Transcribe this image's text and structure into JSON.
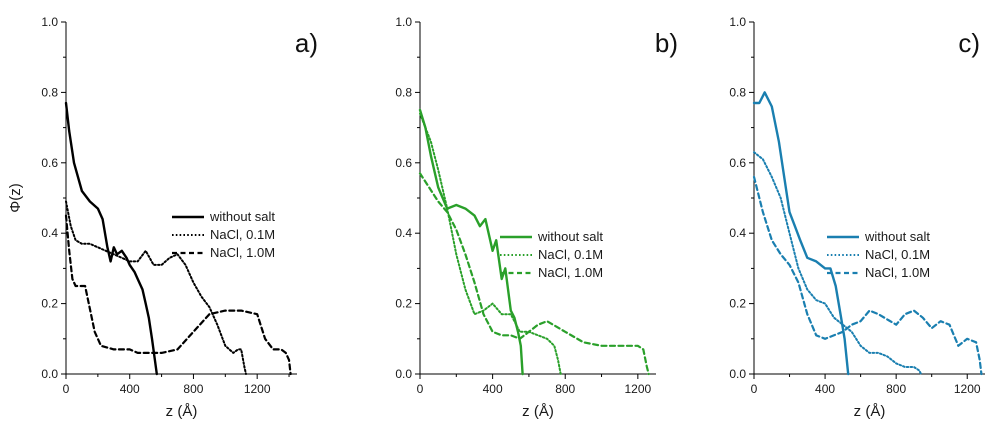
{
  "chart_data": [
    {
      "type": "line",
      "panel_label": "a)",
      "color": "#000000",
      "xlabel": "z (Å)",
      "ylabel": "Φ(z)",
      "xlim": [
        0,
        1450
      ],
      "ylim": [
        0,
        1.0
      ],
      "xticks": [
        0,
        400,
        800,
        1200
      ],
      "yticks": [
        0.0,
        0.2,
        0.4,
        0.6,
        0.8,
        1.0
      ],
      "legend_position": "center-right",
      "series": [
        {
          "name": "without salt",
          "style": "solid",
          "points": [
            [
              0,
              0.77
            ],
            [
              20,
              0.69
            ],
            [
              50,
              0.6
            ],
            [
              100,
              0.52
            ],
            [
              150,
              0.49
            ],
            [
              200,
              0.47
            ],
            [
              230,
              0.44
            ],
            [
              260,
              0.36
            ],
            [
              280,
              0.32
            ],
            [
              300,
              0.36
            ],
            [
              320,
              0.34
            ],
            [
              350,
              0.35
            ],
            [
              380,
              0.33
            ],
            [
              400,
              0.31
            ],
            [
              430,
              0.29
            ],
            [
              450,
              0.27
            ],
            [
              480,
              0.24
            ],
            [
              500,
              0.2
            ],
            [
              520,
              0.16
            ],
            [
              540,
              0.1
            ],
            [
              555,
              0.05
            ],
            [
              570,
              0.0
            ]
          ]
        },
        {
          "name": "NaCl, 0.1M",
          "style": "dotted",
          "points": [
            [
              0,
              0.49
            ],
            [
              30,
              0.42
            ],
            [
              60,
              0.38
            ],
            [
              100,
              0.37
            ],
            [
              150,
              0.37
            ],
            [
              200,
              0.36
            ],
            [
              250,
              0.35
            ],
            [
              300,
              0.34
            ],
            [
              350,
              0.33
            ],
            [
              400,
              0.32
            ],
            [
              450,
              0.32
            ],
            [
              500,
              0.35
            ],
            [
              550,
              0.31
            ],
            [
              600,
              0.31
            ],
            [
              650,
              0.33
            ],
            [
              700,
              0.34
            ],
            [
              750,
              0.31
            ],
            [
              800,
              0.26
            ],
            [
              850,
              0.22
            ],
            [
              900,
              0.19
            ],
            [
              950,
              0.14
            ],
            [
              1000,
              0.08
            ],
            [
              1050,
              0.06
            ],
            [
              1080,
              0.07
            ],
            [
              1100,
              0.07
            ],
            [
              1120,
              0.02
            ],
            [
              1130,
              0.0
            ]
          ]
        },
        {
          "name": "NaCl, 1.0M",
          "style": "dashed",
          "points": [
            [
              0,
              0.45
            ],
            [
              20,
              0.35
            ],
            [
              40,
              0.27
            ],
            [
              60,
              0.25
            ],
            [
              120,
              0.25
            ],
            [
              180,
              0.12
            ],
            [
              220,
              0.08
            ],
            [
              300,
              0.07
            ],
            [
              350,
              0.07
            ],
            [
              400,
              0.07
            ],
            [
              450,
              0.06
            ],
            [
              500,
              0.06
            ],
            [
              600,
              0.06
            ],
            [
              700,
              0.07
            ],
            [
              800,
              0.12
            ],
            [
              900,
              0.17
            ],
            [
              1000,
              0.18
            ],
            [
              1100,
              0.18
            ],
            [
              1200,
              0.17
            ],
            [
              1250,
              0.1
            ],
            [
              1300,
              0.07
            ],
            [
              1350,
              0.07
            ],
            [
              1380,
              0.06
            ],
            [
              1400,
              0.04
            ],
            [
              1410,
              0.0
            ]
          ]
        }
      ]
    },
    {
      "type": "line",
      "panel_label": "b)",
      "color": "#2aa02a",
      "xlabel": "z (Å)",
      "ylabel": "",
      "xlim": [
        0,
        1300
      ],
      "ylim": [
        0,
        1.0
      ],
      "xticks": [
        0,
        400,
        800,
        1200
      ],
      "yticks": [
        0.0,
        0.2,
        0.4,
        0.6,
        0.8,
        1.0
      ],
      "legend_position": "center-right",
      "series": [
        {
          "name": "without salt",
          "style": "solid",
          "points": [
            [
              0,
              0.75
            ],
            [
              30,
              0.7
            ],
            [
              60,
              0.62
            ],
            [
              100,
              0.53
            ],
            [
              150,
              0.47
            ],
            [
              200,
              0.48
            ],
            [
              250,
              0.47
            ],
            [
              300,
              0.45
            ],
            [
              330,
              0.42
            ],
            [
              360,
              0.44
            ],
            [
              400,
              0.35
            ],
            [
              420,
              0.38
            ],
            [
              450,
              0.27
            ],
            [
              470,
              0.3
            ],
            [
              500,
              0.18
            ],
            [
              520,
              0.16
            ],
            [
              540,
              0.12
            ],
            [
              555,
              0.08
            ],
            [
              565,
              0.0
            ]
          ]
        },
        {
          "name": "NaCl, 0.1M",
          "style": "dotted",
          "points": [
            [
              0,
              0.74
            ],
            [
              30,
              0.7
            ],
            [
              60,
              0.66
            ],
            [
              100,
              0.58
            ],
            [
              150,
              0.47
            ],
            [
              200,
              0.34
            ],
            [
              250,
              0.24
            ],
            [
              300,
              0.17
            ],
            [
              350,
              0.18
            ],
            [
              400,
              0.2
            ],
            [
              450,
              0.17
            ],
            [
              500,
              0.17
            ],
            [
              550,
              0.12
            ],
            [
              600,
              0.12
            ],
            [
              650,
              0.11
            ],
            [
              700,
              0.1
            ],
            [
              740,
              0.08
            ],
            [
              760,
              0.04
            ],
            [
              775,
              0.0
            ]
          ]
        },
        {
          "name": "NaCl, 1.0M",
          "style": "dashed",
          "points": [
            [
              0,
              0.57
            ],
            [
              50,
              0.53
            ],
            [
              100,
              0.49
            ],
            [
              150,
              0.46
            ],
            [
              200,
              0.41
            ],
            [
              250,
              0.34
            ],
            [
              300,
              0.26
            ],
            [
              350,
              0.17
            ],
            [
              400,
              0.12
            ],
            [
              450,
              0.11
            ],
            [
              500,
              0.11
            ],
            [
              550,
              0.1
            ],
            [
              600,
              0.12
            ],
            [
              650,
              0.14
            ],
            [
              700,
              0.15
            ],
            [
              800,
              0.12
            ],
            [
              900,
              0.09
            ],
            [
              1000,
              0.08
            ],
            [
              1100,
              0.08
            ],
            [
              1200,
              0.08
            ],
            [
              1230,
              0.07
            ],
            [
              1250,
              0.02
            ],
            [
              1260,
              0.0
            ]
          ]
        }
      ]
    },
    {
      "type": "line",
      "panel_label": "c)",
      "color": "#1a7fb0",
      "xlabel": "z (Å)",
      "ylabel": "",
      "xlim": [
        0,
        1300
      ],
      "ylim": [
        0,
        1.0
      ],
      "xticks": [
        0,
        400,
        800,
        1200
      ],
      "yticks": [
        0.0,
        0.2,
        0.4,
        0.6,
        0.8,
        1.0
      ],
      "legend_position": "center-right",
      "series": [
        {
          "name": "without salt",
          "style": "solid",
          "points": [
            [
              0,
              0.77
            ],
            [
              30,
              0.77
            ],
            [
              60,
              0.8
            ],
            [
              100,
              0.76
            ],
            [
              140,
              0.66
            ],
            [
              170,
              0.56
            ],
            [
              200,
              0.46
            ],
            [
              230,
              0.42
            ],
            [
              260,
              0.38
            ],
            [
              300,
              0.33
            ],
            [
              350,
              0.32
            ],
            [
              400,
              0.3
            ],
            [
              430,
              0.3
            ],
            [
              460,
              0.25
            ],
            [
              490,
              0.16
            ],
            [
              510,
              0.1
            ],
            [
              530,
              0.0
            ]
          ]
        },
        {
          "name": "NaCl, 0.1M",
          "style": "dotted",
          "points": [
            [
              0,
              0.63
            ],
            [
              50,
              0.61
            ],
            [
              100,
              0.56
            ],
            [
              150,
              0.5
            ],
            [
              200,
              0.4
            ],
            [
              250,
              0.3
            ],
            [
              300,
              0.24
            ],
            [
              350,
              0.21
            ],
            [
              400,
              0.2
            ],
            [
              450,
              0.16
            ],
            [
              500,
              0.14
            ],
            [
              550,
              0.12
            ],
            [
              600,
              0.08
            ],
            [
              650,
              0.06
            ],
            [
              700,
              0.06
            ],
            [
              750,
              0.05
            ],
            [
              800,
              0.03
            ],
            [
              850,
              0.02
            ],
            [
              900,
              0.02
            ],
            [
              930,
              0.01
            ],
            [
              940,
              0.0
            ]
          ]
        },
        {
          "name": "NaCl, 1.0M",
          "style": "dashed",
          "points": [
            [
              0,
              0.56
            ],
            [
              50,
              0.46
            ],
            [
              100,
              0.38
            ],
            [
              150,
              0.34
            ],
            [
              200,
              0.31
            ],
            [
              250,
              0.26
            ],
            [
              300,
              0.17
            ],
            [
              350,
              0.11
            ],
            [
              400,
              0.1
            ],
            [
              500,
              0.12
            ],
            [
              550,
              0.14
            ],
            [
              600,
              0.15
            ],
            [
              650,
              0.18
            ],
            [
              700,
              0.17
            ],
            [
              800,
              0.14
            ],
            [
              850,
              0.17
            ],
            [
              900,
              0.18
            ],
            [
              950,
              0.16
            ],
            [
              1000,
              0.13
            ],
            [
              1050,
              0.15
            ],
            [
              1100,
              0.14
            ],
            [
              1150,
              0.08
            ],
            [
              1200,
              0.1
            ],
            [
              1250,
              0.09
            ],
            [
              1270,
              0.04
            ],
            [
              1280,
              0.0
            ]
          ]
        }
      ]
    }
  ]
}
